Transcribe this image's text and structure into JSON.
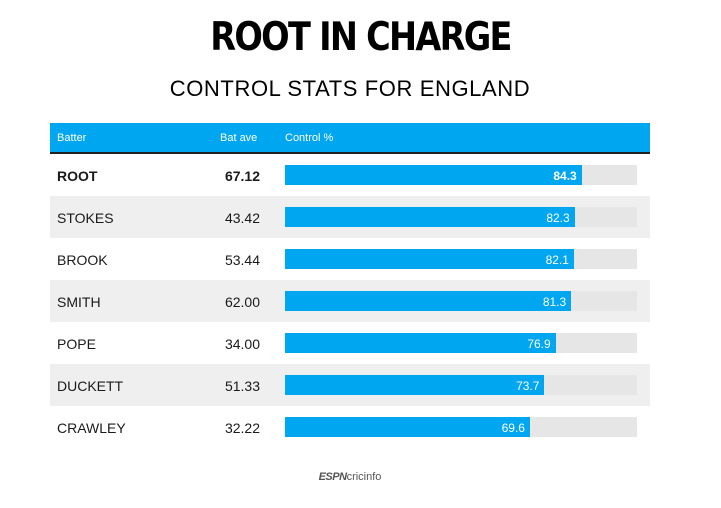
{
  "title": "ROOT IN CHARGE",
  "subtitle": "CONTROL STATS FOR ENGLAND",
  "header": {
    "batter": "Batter",
    "bat_ave": "Bat ave",
    "control": "Control %"
  },
  "logo": {
    "espn": "ESPN",
    "cricinfo": "cricinfo"
  },
  "colors": {
    "bar": "#00a6ef",
    "track": "#e6e6e6",
    "row_shade": "#efefef"
  },
  "chart_data": {
    "type": "bar",
    "orientation": "horizontal",
    "title": "ROOT IN CHARGE",
    "subtitle": "CONTROL STATS FOR ENGLAND",
    "xlim": [
      0,
      100
    ],
    "categories": [
      "ROOT",
      "STOKES",
      "BROOK",
      "SMITH",
      "POPE",
      "DUCKETT",
      "CRAWLEY"
    ],
    "bat_ave": [
      "67.12",
      "43.42",
      "53.44",
      "62.00",
      "34.00",
      "51.33",
      "32.22"
    ],
    "values": [
      84.3,
      82.3,
      82.1,
      81.3,
      76.9,
      73.7,
      69.6
    ],
    "highlight": "ROOT"
  }
}
